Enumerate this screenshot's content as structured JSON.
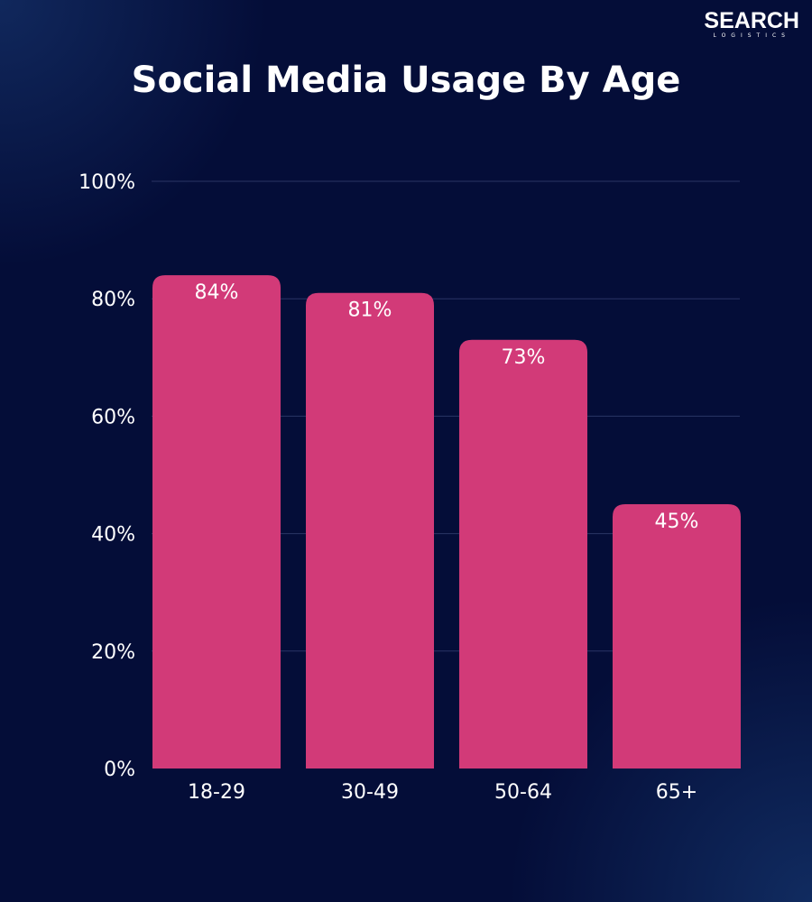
{
  "brand": {
    "name": "SEARCH",
    "sub": "LOGISTICS"
  },
  "colors": {
    "background": "#040d38",
    "bar": "#d23a78",
    "grid": "#2a3565",
    "text": "#ffffff"
  },
  "chart_data": {
    "type": "bar",
    "title": "Social Media Usage By Age",
    "categories": [
      "18-29",
      "30-49",
      "50-64",
      "65+"
    ],
    "values": [
      84,
      81,
      73,
      45
    ],
    "data_labels": [
      "84%",
      "81%",
      "73%",
      "45%"
    ],
    "yticks": [
      0,
      20,
      40,
      60,
      80,
      100
    ],
    "ytick_labels": [
      "0%",
      "20%",
      "40%",
      "60%",
      "80%",
      "100%"
    ],
    "ylim": [
      0,
      100
    ],
    "xlabel": "",
    "ylabel": "",
    "grid": true
  }
}
